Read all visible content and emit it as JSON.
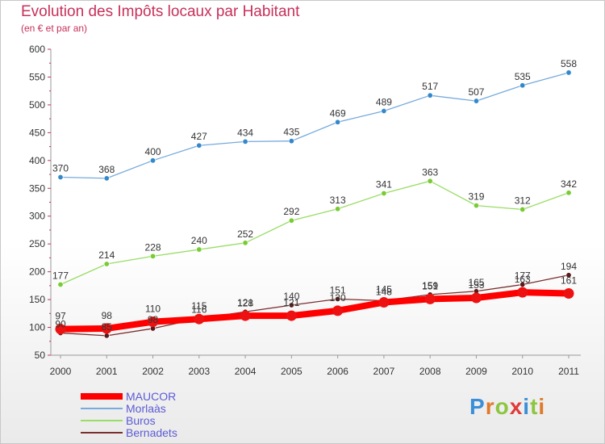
{
  "header": {
    "title": "Evolution des Impôts locaux par Habitant",
    "subtitle": "(en € et par an)"
  },
  "logo": {
    "text": "Proxiti",
    "colors": [
      "#3a8fd8",
      "#e07a2a",
      "#8cc63f",
      "#e03a3a",
      "#3a8fd8",
      "#8cc63f",
      "#e07a2a"
    ]
  },
  "chart_data": {
    "type": "line",
    "title": "Evolution des Impôts locaux par Habitant",
    "subtitle": "(en € et par an)",
    "x": [
      "2000",
      "2001",
      "2002",
      "2003",
      "2004",
      "2005",
      "2006",
      "2007",
      "2008",
      "2009",
      "2010",
      "2011"
    ],
    "ylim": [
      50,
      600
    ],
    "yticks": [
      50,
      100,
      150,
      200,
      250,
      300,
      350,
      400,
      450,
      500,
      550,
      600
    ],
    "grid": false,
    "legend_position": "bottom-left",
    "series": [
      {
        "name": "MAUCOR",
        "color": "#ff0000",
        "marker": "#ee1111",
        "width": 8,
        "label_offset": 6,
        "values": [
          97,
          98,
          110,
          115,
          121,
          121,
          130,
          145,
          151,
          153,
          163,
          161
        ]
      },
      {
        "name": "Morlaàs",
        "color": "#77aadd",
        "marker": "#3388cc",
        "width": 1.3,
        "label_offset": 1,
        "values": [
          370,
          368,
          400,
          427,
          434,
          435,
          469,
          489,
          517,
          507,
          535,
          558
        ]
      },
      {
        "name": "Buros",
        "color": "#99dd66",
        "marker": "#77cc33",
        "width": 1.3,
        "label_offset": 1,
        "values": [
          177,
          214,
          228,
          240,
          252,
          292,
          313,
          341,
          363,
          319,
          312,
          342
        ]
      },
      {
        "name": "Bernadets",
        "color": "#7a2e2e",
        "marker": "#5a1a1a",
        "width": 1.3,
        "label_offset": 1,
        "values": [
          90,
          85,
          98,
          116,
          128,
          140,
          151,
          148,
          159,
          165,
          177,
          194
        ]
      }
    ]
  }
}
